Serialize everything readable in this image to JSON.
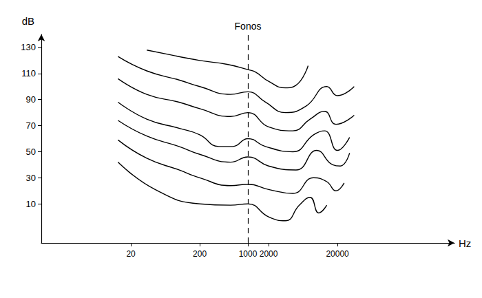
{
  "chart_data": {
    "type": "line",
    "color": "#000000",
    "log": "x",
    "grid": false,
    "line_style": "solid",
    "x_label": "Hz",
    "y_label": "dB",
    "xlim": [
      1,
      1000000
    ],
    "xticks": [
      20,
      200,
      1000,
      2000,
      20000
    ],
    "ylim": [
      -20,
      140
    ],
    "yticks": [
      10,
      30,
      50,
      70,
      90,
      110,
      130
    ],
    "annotations": [
      {
        "x": 1000,
        "text": "Fonos"
      }
    ],
    "series": [
      {
        "x": [
          34,
          100,
          200,
          500,
          1000,
          1300,
          2000,
          3500,
          5000,
          7500
        ],
        "values": [
          128,
          123,
          120,
          117,
          113,
          111,
          104,
          99,
          101,
          116
        ]
      },
      {
        "x": [
          13,
          34,
          100,
          200,
          560,
          1000,
          1800,
          3500,
          7000,
          14000,
          20000,
          35000
        ],
        "values": [
          123,
          112,
          105,
          100,
          94,
          96,
          88,
          80,
          85,
          100,
          93,
          100
        ]
      },
      {
        "x": [
          13,
          34,
          100,
          200,
          560,
          1000,
          2000,
          4500,
          8000,
          13000,
          19000,
          35000
        ],
        "values": [
          106,
          94,
          88,
          83,
          77,
          80,
          69,
          66,
          75,
          81,
          71,
          78
        ]
      },
      {
        "x": [
          13,
          34,
          100,
          200,
          380,
          600,
          1000,
          1800,
          4500,
          9000,
          13000,
          20000,
          30000
        ],
        "values": [
          88,
          75,
          68,
          63,
          54,
          54,
          60,
          54,
          50,
          63,
          66,
          51,
          61
        ]
      },
      {
        "x": [
          13,
          34,
          100,
          200,
          560,
          1000,
          2000,
          5000,
          10000,
          17000,
          22000,
          30000
        ],
        "values": [
          74,
          62,
          54,
          48,
          42,
          46,
          39,
          36,
          51,
          40,
          39,
          49
        ]
      },
      {
        "x": [
          13,
          34,
          100,
          200,
          560,
          1000,
          2000,
          4500,
          9000,
          14000,
          19000,
          25000
        ],
        "values": [
          59,
          45,
          36,
          30,
          24,
          25,
          21,
          18,
          30,
          27,
          20,
          26
        ]
      },
      {
        "x": [
          13,
          45,
          200,
          560,
          1000,
          2000,
          3500,
          5600,
          8000,
          10700,
          14000
        ],
        "values": [
          42,
          21,
          10,
          9,
          10,
          0,
          -3,
          9,
          15,
          3,
          9
        ]
      }
    ]
  }
}
